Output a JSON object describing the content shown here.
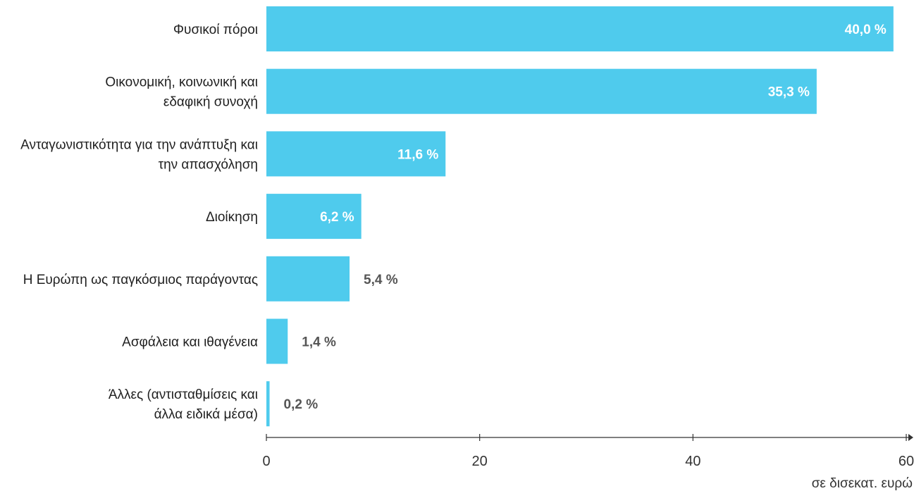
{
  "chart_data": {
    "type": "bar",
    "orientation": "horizontal",
    "categories": [
      [
        "Φυσικοί πόροι"
      ],
      [
        "Οικονομική, κοινωνική και",
        "εδαφική συνοχή"
      ],
      [
        "Ανταγωνιστικότητα για την ανάπτυξη και",
        "την απασχόληση"
      ],
      [
        "Διοίκηση"
      ],
      [
        "Η Ευρώπη ως παγκόσμιος παράγοντας"
      ],
      [
        "Ασφάλεια και ιθαγένεια"
      ],
      [
        "Άλλες (αντισταθμίσεις και",
        "άλλα ειδικά μέσα)"
      ]
    ],
    "values": [
      58.8,
      51.6,
      16.8,
      8.9,
      7.8,
      2.0,
      0.3
    ],
    "value_labels": [
      "40,0 %",
      "35,3 %",
      "11,6 %",
      "6,2 %",
      "5,4 %",
      "1,4 %",
      "0,2 %"
    ],
    "xlim": [
      0,
      60
    ],
    "xticks": [
      0,
      20,
      40,
      60
    ],
    "xtick_labels": [
      "0",
      "20",
      "40",
      "60"
    ],
    "xlabel": "σε δισεκατ. ευρώ",
    "bar_color": "#4fcbed",
    "grid": false
  }
}
